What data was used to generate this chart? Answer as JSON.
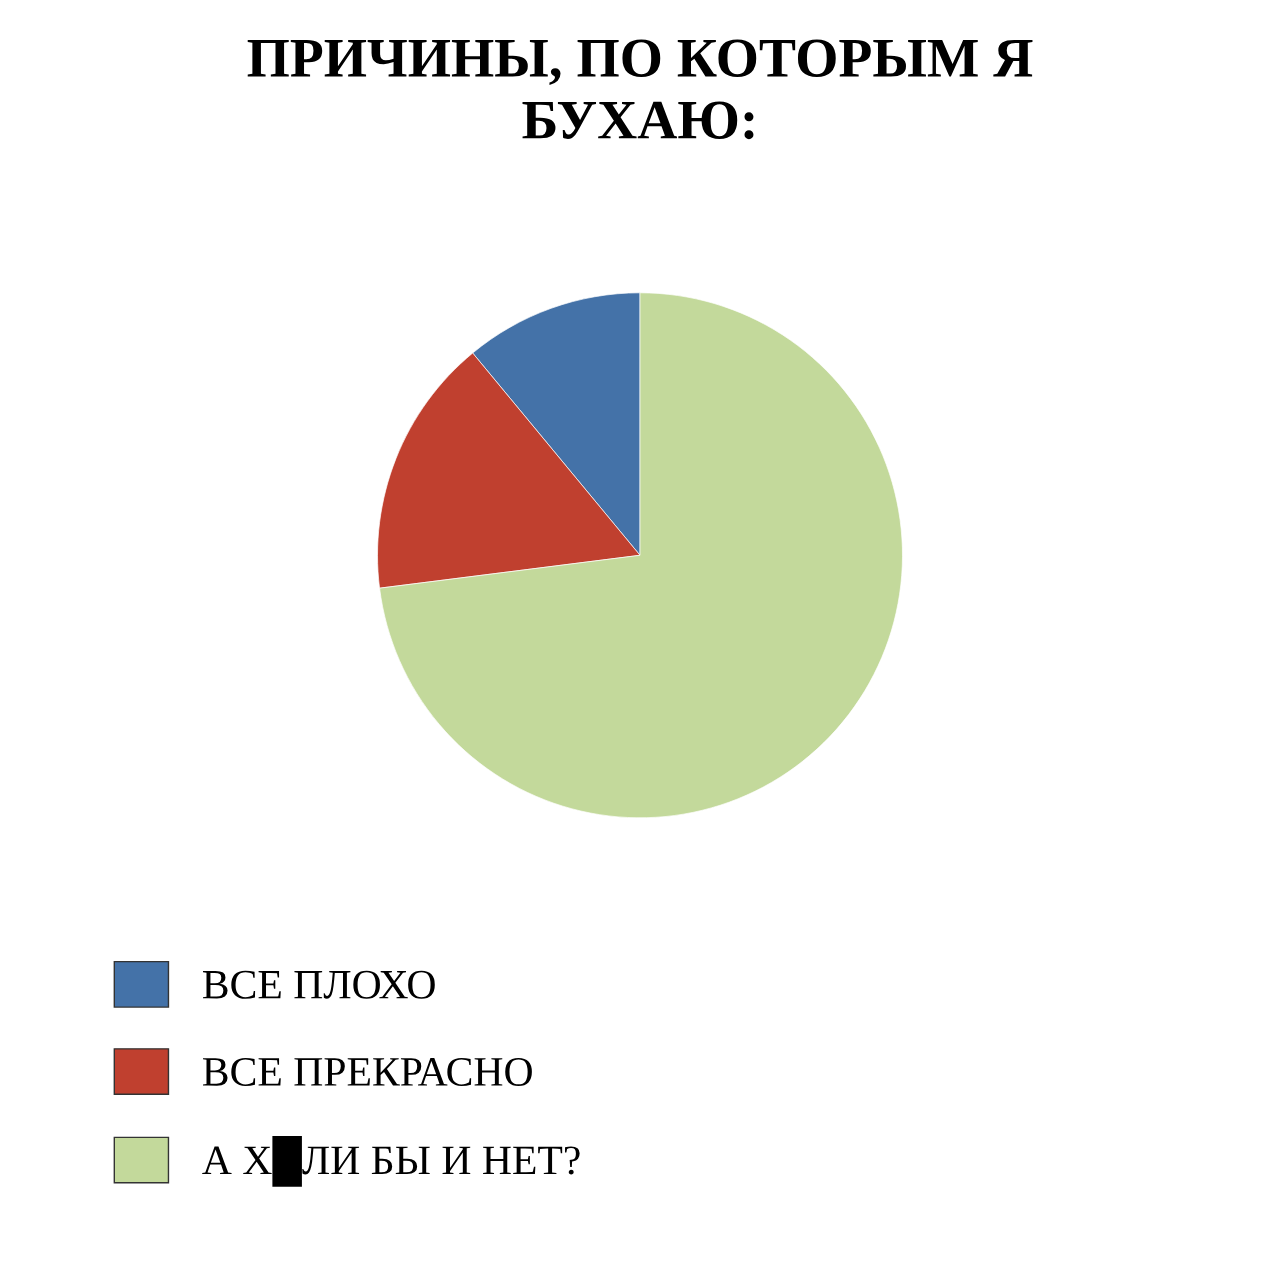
{
  "chart_data": {
    "type": "pie",
    "title": "ПРИЧИНЫ, ПО КОТОРЫМ Я\nБУХАЮ:",
    "categories": [
      "ВСЕ ПЛОХО",
      "ВСЕ ПРЕКРАСНО",
      "А Х█ЛИ БЫ И НЕТ?"
    ],
    "values": [
      11,
      16,
      73
    ],
    "colors": [
      "#4472a8",
      "#c0402f",
      "#c3d99b"
    ],
    "legend": "bottom left"
  }
}
